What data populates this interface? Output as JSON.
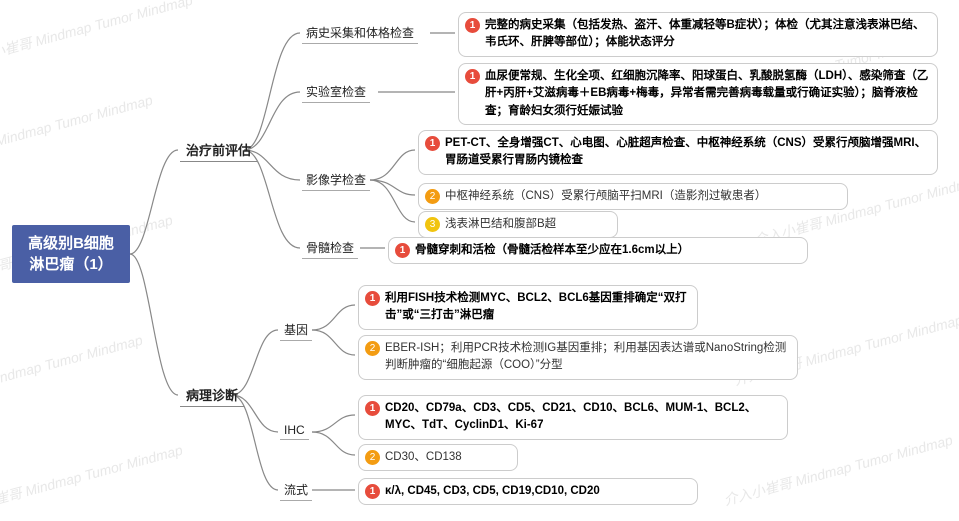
{
  "watermark_text": "介入小崔哥  Mindmap  Tumor  Mindmap",
  "root": {
    "title": "高级别B细胞\n淋巴瘤（1）"
  },
  "colors": {
    "root_bg": "#4a5fa5",
    "badge_red": "#e74c3c",
    "badge_orange": "#f39c12",
    "badge_yellow": "#f1c40f",
    "border": "#cccccc",
    "line": "#888888"
  },
  "branches": {
    "b1": {
      "label": "治疗前评估"
    },
    "b2": {
      "label": "病理诊断"
    }
  },
  "subs": {
    "s1": {
      "label": "病史采集和体格检查"
    },
    "s2": {
      "label": "实验室检查"
    },
    "s3": {
      "label": "影像学检查"
    },
    "s4": {
      "label": "骨髓检查"
    },
    "s5": {
      "label": "基因"
    },
    "s6": {
      "label": "IHC"
    },
    "s7": {
      "label": "流式"
    }
  },
  "leaves": {
    "l1": {
      "num": "1",
      "badge": "red",
      "bold": true,
      "text": "完整的病史采集（包括发热、盗汗、体重减轻等B症状）；体检（尤其注意浅表淋巴结、韦氏环、肝脾等部位）；体能状态评分"
    },
    "l2": {
      "num": "1",
      "badge": "red",
      "bold": true,
      "text": "血尿便常规、生化全项、红细胞沉降率、阳球蛋白、乳酸脱氢酶（LDH）、感染筛查（乙肝+丙肝+艾滋病毒＋EB病毒+梅毒，异常者需完善病毒载量或行确证实验）；脑脊液检查；育龄妇女须行妊娠试验"
    },
    "l3": {
      "num": "1",
      "badge": "red",
      "bold": true,
      "text": "PET-CT、全身增强CT、心电图、心脏超声检查、中枢神经系统（CNS）受累行颅脑增强MRI、胃肠道受累行胃肠内镜检查"
    },
    "l4": {
      "num": "2",
      "badge": "orange",
      "bold": false,
      "text": "中枢神经系统（CNS）受累行颅脑平扫MRI（造影剂过敏患者）"
    },
    "l5": {
      "num": "3",
      "badge": "yellow",
      "bold": false,
      "text": "浅表淋巴结和腹部B超"
    },
    "l6": {
      "num": "1",
      "badge": "red",
      "bold": true,
      "text": "骨髓穿刺和活检（骨髓活检样本至少应在1.6cm以上）"
    },
    "l7": {
      "num": "1",
      "badge": "red",
      "bold": true,
      "text": "利用FISH技术检测MYC、BCL2、BCL6基因重排确定“双打击”或“三打击”淋巴瘤"
    },
    "l8": {
      "num": "2",
      "badge": "orange",
      "bold": false,
      "text": "EBER-ISH；利用PCR技术检测IG基因重排；利用基因表达谱或NanoString检测判断肿瘤的“细胞起源（COO）”分型"
    },
    "l9": {
      "num": "1",
      "badge": "red",
      "bold": true,
      "text": "CD20、CD79a、CD3、CD5、CD21、CD10、BCL6、MUM-1、BCL2、MYC、TdT、CyclinD1、Ki-67"
    },
    "l10": {
      "num": "2",
      "badge": "orange",
      "bold": false,
      "text": "CD30、CD138"
    },
    "l11": {
      "num": "1",
      "badge": "red",
      "bold": true,
      "text": "κ/λ, CD45, CD3, CD5, CD19,CD10, CD20"
    }
  }
}
